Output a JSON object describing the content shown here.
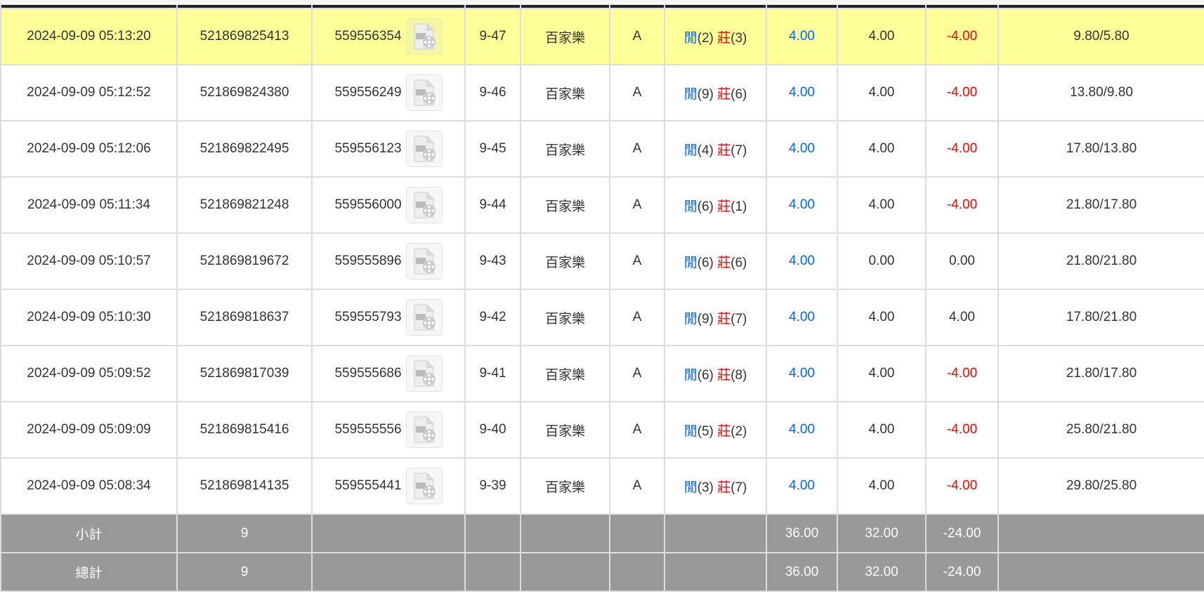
{
  "rows": [
    {
      "time": "2024-09-09 05:13:20",
      "bet_id": "521869825413",
      "round_id": "559556354",
      "game_no": "9-47",
      "game": "百家樂",
      "table": "A",
      "player": "閒",
      "player_pts": "(2)",
      "banker": "莊",
      "banker_pts": "(3)",
      "bet": "4.00",
      "valid": "4.00",
      "winloss": "-4.00",
      "balance": "9.80/5.80",
      "highlight": true
    },
    {
      "time": "2024-09-09 05:12:52",
      "bet_id": "521869824380",
      "round_id": "559556249",
      "game_no": "9-46",
      "game": "百家樂",
      "table": "A",
      "player": "閒",
      "player_pts": "(9)",
      "banker": "莊",
      "banker_pts": "(6)",
      "bet": "4.00",
      "valid": "4.00",
      "winloss": "-4.00",
      "balance": "13.80/9.80"
    },
    {
      "time": "2024-09-09 05:12:06",
      "bet_id": "521869822495",
      "round_id": "559556123",
      "game_no": "9-45",
      "game": "百家樂",
      "table": "A",
      "player": "閒",
      "player_pts": "(4)",
      "banker": "莊",
      "banker_pts": "(7)",
      "bet": "4.00",
      "valid": "4.00",
      "winloss": "-4.00",
      "balance": "17.80/13.80"
    },
    {
      "time": "2024-09-09 05:11:34",
      "bet_id": "521869821248",
      "round_id": "559556000",
      "game_no": "9-44",
      "game": "百家樂",
      "table": "A",
      "player": "閒",
      "player_pts": "(6)",
      "banker": "莊",
      "banker_pts": "(1)",
      "bet": "4.00",
      "valid": "4.00",
      "winloss": "-4.00",
      "balance": "21.80/17.80"
    },
    {
      "time": "2024-09-09 05:10:57",
      "bet_id": "521869819672",
      "round_id": "559555896",
      "game_no": "9-43",
      "game": "百家樂",
      "table": "A",
      "player": "閒",
      "player_pts": "(6)",
      "banker": "莊",
      "banker_pts": "(6)",
      "bet": "4.00",
      "valid": "0.00",
      "winloss": "0.00",
      "balance": "21.80/21.80"
    },
    {
      "time": "2024-09-09 05:10:30",
      "bet_id": "521869818637",
      "round_id": "559555793",
      "game_no": "9-42",
      "game": "百家樂",
      "table": "A",
      "player": "閒",
      "player_pts": "(9)",
      "banker": "莊",
      "banker_pts": "(7)",
      "bet": "4.00",
      "valid": "4.00",
      "winloss": "4.00",
      "balance": "17.80/21.80"
    },
    {
      "time": "2024-09-09 05:09:52",
      "bet_id": "521869817039",
      "round_id": "559555686",
      "game_no": "9-41",
      "game": "百家樂",
      "table": "A",
      "player": "閒",
      "player_pts": "(6)",
      "banker": "莊",
      "banker_pts": "(8)",
      "bet": "4.00",
      "valid": "4.00",
      "winloss": "-4.00",
      "balance": "21.80/17.80"
    },
    {
      "time": "2024-09-09 05:09:09",
      "bet_id": "521869815416",
      "round_id": "559555556",
      "game_no": "9-40",
      "game": "百家樂",
      "table": "A",
      "player": "閒",
      "player_pts": "(5)",
      "banker": "莊",
      "banker_pts": "(2)",
      "bet": "4.00",
      "valid": "4.00",
      "winloss": "-4.00",
      "balance": "25.80/21.80"
    },
    {
      "time": "2024-09-09 05:08:34",
      "bet_id": "521869814135",
      "round_id": "559555441",
      "game_no": "9-39",
      "game": "百家樂",
      "table": "A",
      "player": "閒",
      "player_pts": "(3)",
      "banker": "莊",
      "banker_pts": "(7)",
      "bet": "4.00",
      "valid": "4.00",
      "winloss": "-4.00",
      "balance": "29.80/25.80"
    }
  ],
  "summary": [
    {
      "label": "小計",
      "count": "9",
      "bet": "36.00",
      "valid": "32.00",
      "winloss": "-24.00"
    },
    {
      "label": "總計",
      "count": "9",
      "bet": "36.00",
      "valid": "32.00",
      "winloss": "-24.00"
    }
  ],
  "icons": {
    "replay": "video-file-icon"
  },
  "colors": {
    "highlight": "#ffff99",
    "player": "#0066ff",
    "banker": "#ff0000",
    "negative": "#ff0000",
    "summary_bg": "#999999"
  }
}
